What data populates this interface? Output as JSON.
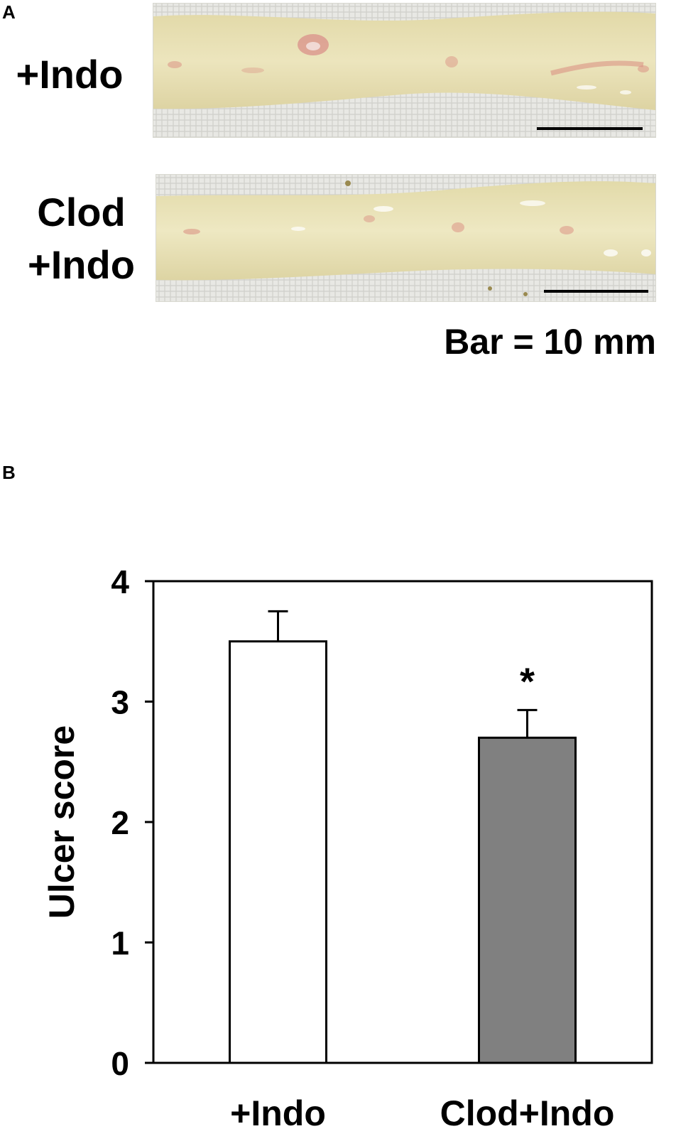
{
  "panel_a": {
    "letter": "A",
    "rows": [
      {
        "label_lines": [
          "+Indo"
        ]
      },
      {
        "label_lines": [
          "Clod",
          "+Indo"
        ]
      }
    ],
    "scale_caption": "Bar = 10 mm"
  },
  "panel_b": {
    "letter": "B"
  },
  "colors": {
    "tissue": "#e9e2b4",
    "gauze": "#e6e6e2",
    "lesion": "#d98c80",
    "bar_indo": "#ffffff",
    "bar_clod_indo": "#808080"
  },
  "chart_data": {
    "type": "bar",
    "title": "",
    "xlabel": "",
    "ylabel": "Ulcer score",
    "ylim": [
      0,
      4
    ],
    "yticks": [
      0,
      1,
      2,
      3,
      4
    ],
    "categories": [
      "+Indo",
      "Clod+Indo"
    ],
    "values": [
      3.5,
      2.7
    ],
    "errors": [
      0.25,
      0.23
    ],
    "significance": [
      "",
      "*"
    ],
    "grid": false
  }
}
